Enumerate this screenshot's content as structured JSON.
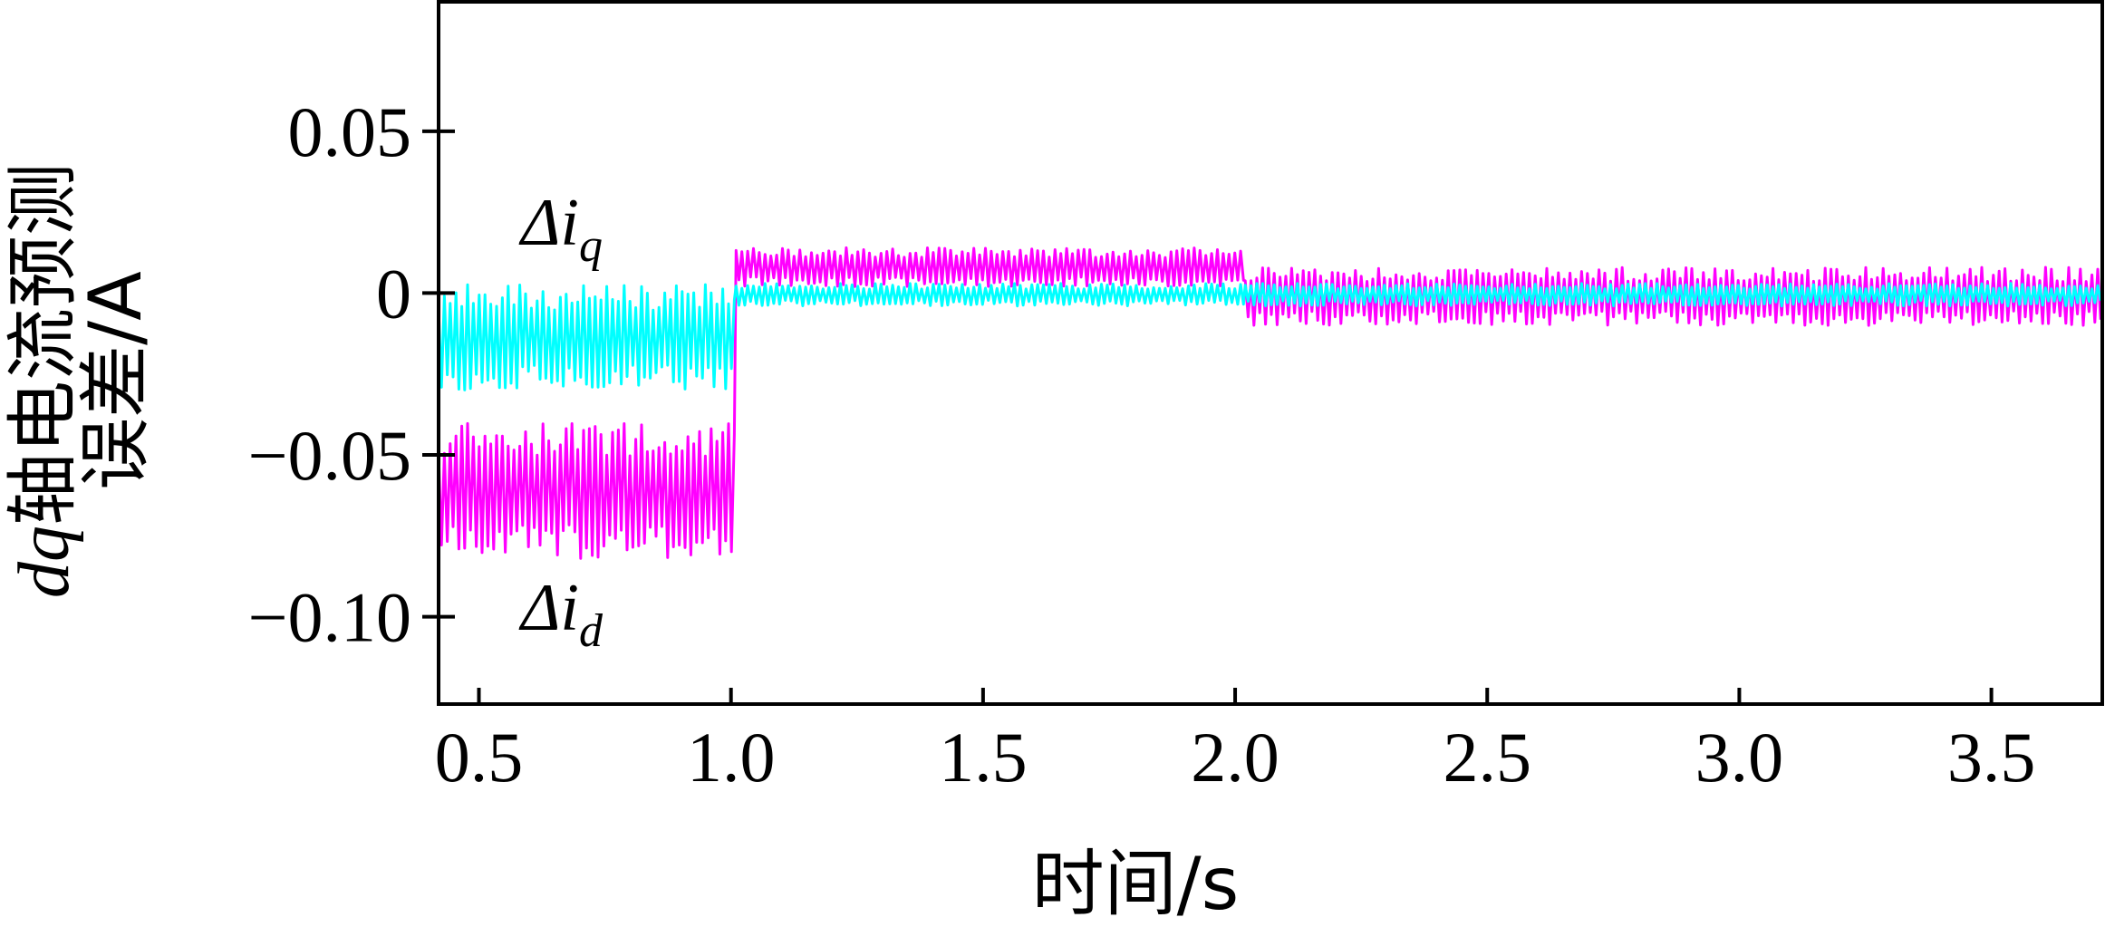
{
  "chart_data": {
    "type": "line",
    "xlabel": "时间/s",
    "ylabel_line1": "轴电流预测",
    "ylabel_line1_prefix": "dq",
    "ylabel_line2": "误差/A",
    "xlim": [
      0.42,
      3.72
    ],
    "ylim": [
      -0.127,
      0.09
    ],
    "x_ticks": [
      0.5,
      1.0,
      1.5,
      2.0,
      2.5,
      3.0,
      3.5
    ],
    "x_tick_labels": [
      "0.5",
      "1.0",
      "1.5",
      "2.0",
      "2.5",
      "3.0",
      "3.5"
    ],
    "y_ticks": [
      0.05,
      0,
      -0.05,
      -0.1
    ],
    "y_tick_labels": [
      "0.05",
      "0",
      "−0.05",
      "−0.10"
    ],
    "grid": false,
    "annotations": [
      {
        "base": "Δi",
        "sub": "q",
        "x": 0.55,
        "y": 0.012
      },
      {
        "base": "Δi",
        "sub": "d",
        "x": 0.55,
        "y": -0.103
      }
    ],
    "series": [
      {
        "color": "#ff00ff",
        "segments": [
          {
            "x_start": 0.42,
            "x_end": 1.01,
            "low": -0.082,
            "high": -0.04
          },
          {
            "x_start": 1.01,
            "x_end": 2.02,
            "low": 0.002,
            "high": 0.014
          },
          {
            "x_start": 2.02,
            "x_end": 3.72,
            "low": -0.01,
            "high": 0.008
          }
        ]
      },
      {
        "color": "#00ffff",
        "segments": [
          {
            "x_start": 0.42,
            "x_end": 1.01,
            "low": -0.03,
            "high": 0.003
          },
          {
            "x_start": 1.01,
            "x_end": 2.02,
            "low": -0.004,
            "high": 0.003
          },
          {
            "x_start": 2.02,
            "x_end": 3.72,
            "low": -0.004,
            "high": 0.003
          }
        ]
      }
    ]
  }
}
